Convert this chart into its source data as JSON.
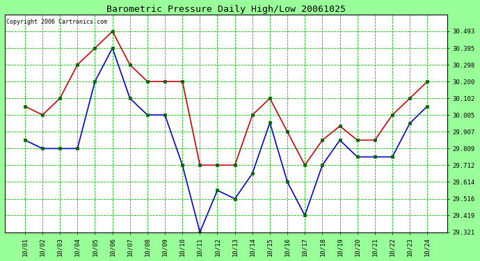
{
  "title": "Barometric Pressure Daily High/Low 20061025",
  "copyright": "Copyright 2006 Cartronics.com",
  "dates": [
    "10/01",
    "10/02",
    "10/03",
    "10/04",
    "10/05",
    "10/06",
    "10/07",
    "10/08",
    "10/09",
    "10/10",
    "10/11",
    "10/12",
    "10/13",
    "10/14",
    "10/15",
    "10/16",
    "10/17",
    "10/18",
    "10/19",
    "10/20",
    "10/21",
    "10/22",
    "10/23",
    "10/24"
  ],
  "high": [
    30.056,
    30.005,
    30.102,
    30.298,
    30.395,
    30.493,
    30.298,
    30.2,
    30.2,
    30.2,
    29.712,
    29.712,
    29.712,
    30.005,
    30.102,
    29.907,
    29.712,
    29.858,
    29.94,
    29.858,
    29.858,
    30.005,
    30.102,
    30.2
  ],
  "low": [
    29.858,
    29.809,
    29.809,
    29.809,
    30.2,
    30.395,
    30.102,
    30.005,
    30.005,
    29.712,
    29.321,
    29.565,
    29.516,
    29.663,
    29.96,
    29.614,
    29.419,
    29.712,
    29.858,
    29.76,
    29.76,
    29.76,
    29.956,
    30.056
  ],
  "high_color": "#cc0000",
  "low_color": "#0000cc",
  "marker_color": "#006600",
  "plot_bg": "#ffffff",
  "fig_bg": "#99ff99",
  "grid_color": "#00bb00",
  "title_color": "#000000",
  "copyright_color": "#000000",
  "ylim_min": 29.321,
  "ylim_max": 30.59,
  "yticks": [
    29.321,
    29.419,
    29.516,
    29.614,
    29.712,
    29.809,
    29.907,
    30.005,
    30.102,
    30.2,
    30.298,
    30.395,
    30.493
  ]
}
